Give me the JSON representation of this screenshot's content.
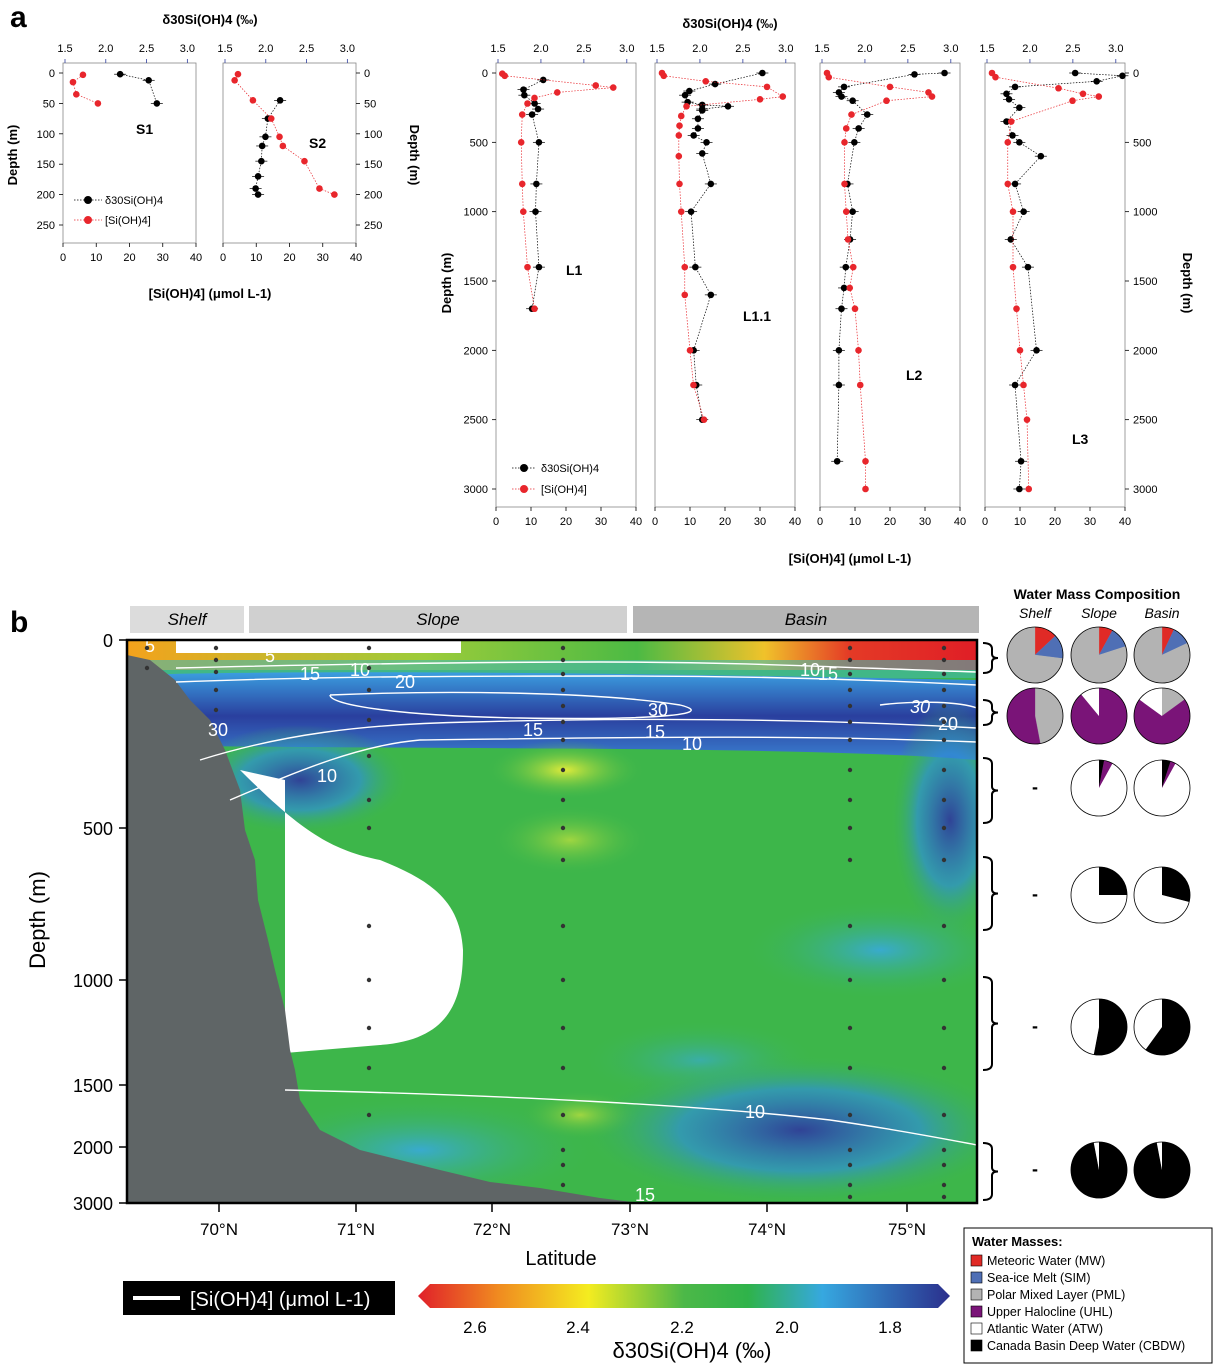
{
  "panel_labels": {
    "a": "a",
    "b": "b"
  },
  "colors": {
    "concentration": "#e8262c",
    "isotope": "#000000",
    "axis_accent": "#2f3f9f",
    "bathymetry": "#5f6566",
    "meteoric": "#e02a26",
    "sea_ice_melt": "#4f6fb5",
    "pml": "#b3b3b3",
    "uhl": "#7a1478",
    "atw": "#ffffff",
    "cbdw": "#000000"
  },
  "panel_a": {
    "top_axis_label": "δ30Si(OH)4 (‰)",
    "bottom_axis_label": "[Si(OH)4] (μmol L-1)",
    "depth_label": "Depth (m)",
    "legend": {
      "isotope": "δ30Si(OH)4",
      "concentration": "[Si(OH)4]"
    },
    "shallow_delta_ticks": [
      "1.5",
      "2.0",
      "2.5",
      "3.0"
    ],
    "shallow_conc_ticks": [
      "0",
      "10",
      "20",
      "30",
      "40"
    ],
    "shallow_depth_ticks": [
      "0",
      "50",
      "100",
      "150",
      "200",
      "250"
    ],
    "deep_delta_ticks": [
      "1.5",
      "2.0",
      "2.5",
      "3.0"
    ],
    "deep_conc_ticks": [
      "0",
      "10",
      "20",
      "30",
      "40"
    ],
    "deep_depth_ticks": [
      "0",
      "500",
      "1000",
      "1500",
      "2000",
      "2500",
      "3000"
    ]
  },
  "chart_data": [
    {
      "type": "scatter",
      "title": "S1",
      "xlabel": "[Si(OH)4] (μmol L-1) / δ30Si(OH)4 (‰)",
      "ylabel": "Depth (m)",
      "ylim": [
        250,
        0
      ],
      "series": [
        {
          "name": "δ30Si(OH)4",
          "x": [
            2.2,
            2.55,
            2.65
          ],
          "y": [
            2,
            12,
            50
          ]
        },
        {
          "name": "[Si(OH)4]",
          "x": [
            6,
            3,
            4,
            10.5
          ],
          "y": [
            3,
            15,
            35,
            50
          ]
        }
      ]
    },
    {
      "type": "scatter",
      "title": "S2",
      "ylim": [
        250,
        0
      ],
      "series": [
        {
          "name": "δ30Si(OH)4",
          "x": [
            2.2,
            2.05,
            2.02,
            1.98,
            1.97,
            1.93,
            1.9,
            1.93
          ],
          "y": [
            45,
            75,
            105,
            120,
            145,
            170,
            190,
            200
          ]
        },
        {
          "name": "[Si(OH)4]",
          "x": [
            4.5,
            3.5,
            9,
            14.5,
            17,
            18,
            24.5,
            29,
            33.5
          ],
          "y": [
            2,
            12,
            45,
            75,
            105,
            120,
            145,
            190,
            200
          ]
        }
      ]
    },
    {
      "type": "scatter",
      "title": "L1",
      "ylim": [
        3000,
        0
      ],
      "series": [
        {
          "name": "δ30Si(OH)4",
          "x": [
            2.05,
            1.82,
            1.83,
            1.95,
            1.99,
            1.92,
            2.0,
            1.97,
            1.96,
            2.0,
            1.92
          ],
          "y": [
            50,
            120,
            160,
            220,
            260,
            300,
            500,
            800,
            1000,
            1400,
            1700
          ]
        },
        {
          "name": "[Si(OH)4]",
          "x": [
            1.8,
            2.5,
            28.5,
            33.5,
            17.5,
            11,
            9,
            7.5,
            7.2,
            7.5,
            7.8,
            9,
            11
          ],
          "y": [
            5,
            20,
            90,
            105,
            140,
            180,
            220,
            300,
            500,
            800,
            1000,
            1400,
            1700
          ]
        }
      ]
    },
    {
      "type": "scatter",
      "title": "L1.1",
      "ylim": [
        3000,
        0
      ],
      "series": [
        {
          "name": "δ30Si(OH)4",
          "x": [
            2.75,
            2.2,
            1.9,
            1.85,
            1.88,
            2.05,
            2.35,
            2.05,
            2.05,
            2.0,
            2.0,
            1.95,
            2.1,
            2.05,
            2.15,
            1.92,
            1.97,
            2.15,
            1.95,
            1.98,
            2.05
          ],
          "y": [
            0,
            80,
            130,
            160,
            210,
            230,
            240,
            260,
            270,
            330,
            400,
            450,
            500,
            580,
            800,
            1000,
            1400,
            1600,
            2000,
            2250,
            2500
          ]
        },
        {
          "name": "[Si(OH)4]",
          "x": [
            2,
            2.5,
            14.5,
            32,
            36.5,
            30,
            9,
            7.5,
            7,
            6.8,
            6.8,
            7,
            7.5,
            8.5,
            8.5,
            10,
            11,
            14
          ],
          "y": [
            0,
            20,
            60,
            100,
            170,
            190,
            240,
            310,
            380,
            450,
            600,
            800,
            1000,
            1400,
            1600,
            2000,
            2250,
            2500
          ]
        }
      ]
    },
    {
      "type": "scatter",
      "title": "L2",
      "ylim": [
        3000,
        0
      ],
      "series": [
        {
          "name": "δ30Si(OH)4",
          "x": [
            2.95,
            2.6,
            1.78,
            1.72,
            1.75,
            1.88,
            2.05,
            1.95,
            1.9,
            1.82,
            1.88,
            1.85,
            1.8,
            1.78,
            1.75,
            1.72,
            1.72,
            1.7
          ],
          "y": [
            0,
            10,
            100,
            140,
            170,
            200,
            300,
            400,
            500,
            800,
            1000,
            1200,
            1400,
            1550,
            1700,
            2000,
            2250,
            2800
          ]
        },
        {
          "name": "[Si(OH)4]",
          "x": [
            2,
            2.5,
            20,
            31,
            32,
            19,
            9,
            7.5,
            7,
            7,
            7.5,
            8,
            9.5,
            8.5,
            10,
            11,
            11.5,
            13,
            13
          ],
          "y": [
            0,
            30,
            100,
            140,
            170,
            200,
            300,
            400,
            500,
            800,
            1000,
            1200,
            1400,
            1550,
            1700,
            2000,
            2250,
            2800,
            3000
          ]
        }
      ]
    },
    {
      "type": "scatter",
      "title": "L3",
      "ylim": [
        3000,
        0
      ],
      "series": [
        {
          "name": "δ30Si(OH)4",
          "x": [
            2.55,
            3.1,
            2.8,
            1.85,
            1.75,
            1.78,
            1.9,
            1.75,
            1.82,
            1.9,
            2.15,
            1.85,
            1.95,
            1.8,
            2.0,
            2.1,
            1.85,
            1.92,
            1.9
          ],
          "y": [
            0,
            20,
            60,
            100,
            150,
            190,
            250,
            350,
            450,
            500,
            600,
            800,
            1000,
            1200,
            1400,
            2000,
            2250,
            2800,
            3000
          ]
        },
        {
          "name": "[Si(OH)4]",
          "x": [
            2,
            3,
            21,
            28,
            32.5,
            25,
            7.5,
            6.5,
            6.5,
            8,
            8,
            9,
            10,
            11,
            12,
            12.5
          ],
          "y": [
            0,
            30,
            110,
            150,
            170,
            200,
            350,
            500,
            800,
            1000,
            1400,
            1700,
            2000,
            2250,
            2500,
            3000
          ]
        }
      ]
    },
    {
      "type": "heatmap",
      "xlabel": "Latitude",
      "ylabel": "Depth (m)",
      "x_ticks": [
        "70°N",
        "71°N",
        "72°N",
        "73°N",
        "74°N",
        "75°N"
      ],
      "y_ticks": [
        "0",
        "500",
        "1000",
        "1500",
        "2000",
        "3000"
      ],
      "regions": [
        "Shelf",
        "Slope",
        "Basin"
      ],
      "contour_labels": [
        "5",
        "5",
        "10",
        "15",
        "20",
        "30",
        "30",
        "15",
        "15",
        "10",
        "10",
        "10",
        "15",
        "30",
        "20",
        "10",
        "15"
      ],
      "colorbar": {
        "title": "δ30Si(OH)4 (‰)",
        "ticks": [
          "2.6",
          "2.4",
          "2.2",
          "2.0",
          "1.8"
        ]
      },
      "contour_legend": "[Si(OH)4] (μmol L-1)"
    }
  ],
  "water_mass": {
    "title": "Water Mass Composition",
    "columns": [
      "Shelf",
      "Slope",
      "Basin"
    ],
    "dash": "-",
    "rows": [
      {
        "shelf": [
          {
            "c": "meteoric",
            "v": 0.13
          },
          {
            "c": "sea_ice_melt",
            "v": 0.14
          },
          {
            "c": "pml",
            "v": 0.73
          }
        ],
        "slope": [
          {
            "c": "meteoric",
            "v": 0.08
          },
          {
            "c": "sea_ice_melt",
            "v": 0.12
          },
          {
            "c": "pml",
            "v": 0.8
          }
        ],
        "basin": [
          {
            "c": "meteoric",
            "v": 0.07
          },
          {
            "c": "sea_ice_melt",
            "v": 0.11
          },
          {
            "c": "pml",
            "v": 0.82
          }
        ]
      },
      {
        "shelf": [
          {
            "c": "pml",
            "v": 0.47
          },
          {
            "c": "uhl",
            "v": 0.53
          }
        ],
        "slope": [
          {
            "c": "uhl",
            "v": 0.89
          },
          {
            "c": "atw",
            "v": 0.11
          }
        ],
        "basin": [
          {
            "c": "pml",
            "v": 0.15
          },
          {
            "c": "uhl",
            "v": 0.7
          },
          {
            "c": "atw",
            "v": 0.15
          }
        ]
      },
      {
        "shelf": null,
        "slope": [
          {
            "c": "cbdw",
            "v": 0.03
          },
          {
            "c": "uhl",
            "v": 0.05
          },
          {
            "c": "atw",
            "v": 0.92
          }
        ],
        "basin": [
          {
            "c": "cbdw",
            "v": 0.05
          },
          {
            "c": "uhl",
            "v": 0.03
          },
          {
            "c": "atw",
            "v": 0.92
          }
        ]
      },
      {
        "shelf": null,
        "slope": [
          {
            "c": "cbdw",
            "v": 0.25
          },
          {
            "c": "atw",
            "v": 0.75
          }
        ],
        "basin": [
          {
            "c": "cbdw",
            "v": 0.29
          },
          {
            "c": "atw",
            "v": 0.71
          }
        ]
      },
      {
        "shelf": null,
        "slope": [
          {
            "c": "cbdw",
            "v": 0.53
          },
          {
            "c": "atw",
            "v": 0.47
          }
        ],
        "basin": [
          {
            "c": "cbdw",
            "v": 0.6
          },
          {
            "c": "atw",
            "v": 0.4
          }
        ]
      },
      {
        "shelf": null,
        "slope": [
          {
            "c": "cbdw",
            "v": 0.97
          },
          {
            "c": "atw",
            "v": 0.03
          }
        ],
        "basin": [
          {
            "c": "cbdw",
            "v": 0.97
          },
          {
            "c": "atw",
            "v": 0.03
          }
        ]
      }
    ],
    "legend_title": "Water Masses:",
    "legend_items": [
      {
        "c": "meteoric",
        "label": "Meteoric Water (MW)"
      },
      {
        "c": "sea_ice_melt",
        "label": "Sea-ice Melt (SIM)"
      },
      {
        "c": "pml",
        "label": "Polar Mixed Layer (PML)"
      },
      {
        "c": "uhl",
        "label": "Upper Halocline (UHL)"
      },
      {
        "c": "atw",
        "label": "Atlantic Water (ATW)"
      },
      {
        "c": "cbdw",
        "label": "Canada Basin Deep Water (CBDW)"
      }
    ]
  }
}
